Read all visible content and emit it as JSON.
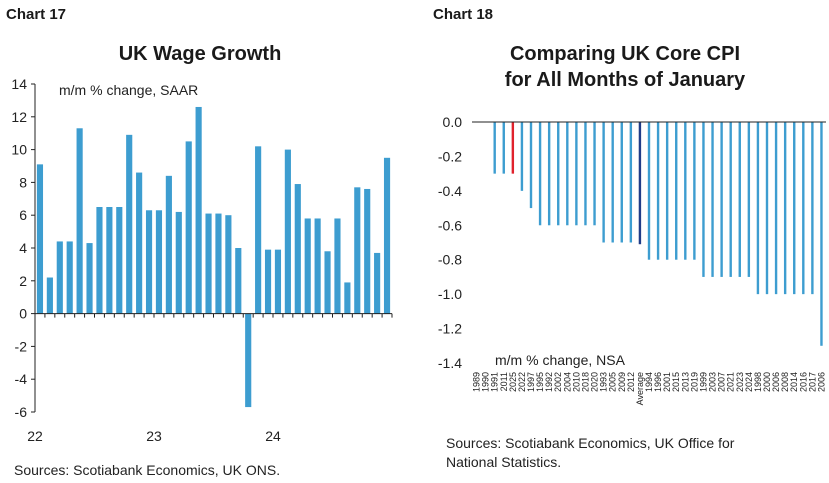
{
  "chart_data": [
    {
      "type": "bar",
      "label": "Chart 17",
      "title": "UK Wage Growth",
      "annotation": "m/m % change, SAAR",
      "ylim": [
        -6,
        14
      ],
      "yticks": [
        "14",
        "12",
        "10",
        "8",
        "6",
        "4",
        "2",
        "0",
        "-2",
        "-4",
        "-6"
      ],
      "xlabels": [
        "22",
        "23",
        "24"
      ],
      "xlabel_indices": [
        0,
        12,
        24
      ],
      "values": [
        9.1,
        2.2,
        4.4,
        4.4,
        11.3,
        4.3,
        6.5,
        6.5,
        6.5,
        10.9,
        8.6,
        6.3,
        6.3,
        8.4,
        6.2,
        10.5,
        12.6,
        6.1,
        6.1,
        6.0,
        4.0,
        -5.7,
        10.2,
        3.9,
        3.9,
        10.0,
        7.9,
        5.8,
        5.8,
        3.8,
        5.8,
        1.9,
        7.7,
        7.6,
        3.7,
        9.5
      ],
      "sources": "Sources: Scotiabank Economics, UK ONS.",
      "color": "#3d9dd0"
    },
    {
      "type": "bar",
      "label": "Chart 18",
      "title_lines": [
        "Comparing UK Core CPI",
        "for All Months of January"
      ],
      "annotation": "m/m % change, NSA",
      "ylim": [
        -1.4,
        0.0
      ],
      "yticks": [
        "0.0",
        "-0.2",
        "-0.4",
        "-0.6",
        "-0.8",
        "-1.0",
        "-1.2",
        "-1.4"
      ],
      "categories": [
        "1989",
        "1990",
        "1991",
        "2011",
        "2025",
        "2022",
        "1997",
        "1995",
        "1992",
        "2002",
        "2004",
        "2010",
        "2018",
        "2020",
        "1993",
        "2005",
        "2009",
        "2012",
        "Average",
        "1994",
        "1996",
        "2001",
        "2015",
        "2013",
        "2019",
        "1999",
        "2003",
        "2007",
        "2021",
        "2023",
        "2024",
        "1998",
        "2000",
        "2006",
        "2008",
        "2014",
        "2016",
        "2017",
        "2006"
      ],
      "values": [
        0.0,
        0.0,
        -0.3,
        -0.3,
        -0.3,
        -0.4,
        -0.5,
        -0.6,
        -0.6,
        -0.6,
        -0.6,
        -0.6,
        -0.6,
        -0.6,
        -0.7,
        -0.7,
        -0.7,
        -0.7,
        -0.71,
        -0.8,
        -0.8,
        -0.8,
        -0.8,
        -0.8,
        -0.8,
        -0.9,
        -0.9,
        -0.9,
        -0.9,
        -0.9,
        -0.9,
        -1.0,
        -1.0,
        -1.0,
        -1.0,
        -1.0,
        -1.0,
        -1.0,
        -1.3
      ],
      "highlight": {
        "2025": "#e0222c",
        "Average": "#1f3c88"
      },
      "sources_lines": [
        "Sources: Scotiabank Economics, UK Office for",
        "National Statistics."
      ],
      "color": "#3d9dd0"
    }
  ]
}
